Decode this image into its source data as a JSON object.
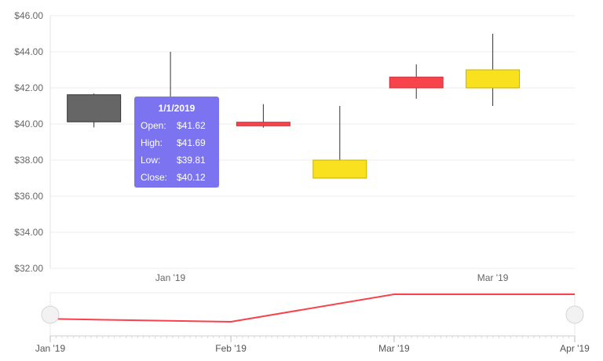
{
  "chart_data": {
    "type": "candlestick",
    "y_ticks": [
      "$46.00",
      "$44.00",
      "$42.00",
      "$40.00",
      "$38.00",
      "$36.00",
      "$34.00",
      "$32.00"
    ],
    "ylim": [
      32,
      46
    ],
    "xlim": [
      "2019-01-01",
      "2019-04-01"
    ],
    "x_tick_labels": [
      {
        "date": "2019-01-15",
        "label": "Jan '19"
      },
      {
        "date": "2019-03-15",
        "label": "Mar '19"
      }
    ],
    "candles": [
      {
        "date": "2019-01-01",
        "open": 41.62,
        "high": 41.69,
        "low": 39.81,
        "close": 40.12,
        "color": "#666666"
      },
      {
        "date": "2019-01-15",
        "open": 40.1,
        "high": 44.0,
        "low": 39.5,
        "close": 40.1,
        "color": "#666666",
        "hidden": true
      },
      {
        "date": "2019-02-01",
        "open": 40.1,
        "high": 41.1,
        "low": 39.8,
        "close": 39.9,
        "color": "#f7434c"
      },
      {
        "date": "2019-02-15",
        "open": 38.0,
        "high": 41.0,
        "low": 37.0,
        "close": 37.0,
        "color": "#f9e11f"
      },
      {
        "date": "2019-03-01",
        "open": 42.6,
        "high": 43.3,
        "low": 41.4,
        "close": 42.0,
        "color": "#f7434c"
      },
      {
        "date": "2019-03-15",
        "open": 43.0,
        "high": 45.0,
        "low": 41.0,
        "close": 42.0,
        "color": "#f9e11f"
      }
    ],
    "navigator": {
      "line_color": "#f7434c",
      "labels": [
        "Jan '19",
        "Feb '19",
        "Mar '19",
        "Apr '19"
      ],
      "series": [
        {
          "date": "2019-01-01",
          "value": 40.12
        },
        {
          "date": "2019-02-01",
          "value": 39.9
        },
        {
          "date": "2019-03-01",
          "value": 42.0
        },
        {
          "date": "2019-04-01",
          "value": 42.0
        }
      ]
    }
  },
  "tooltip": {
    "title": "1/1/2019",
    "rows": [
      {
        "k": "Open:",
        "v": "$41.62"
      },
      {
        "k": "High:",
        "v": "$41.69"
      },
      {
        "k": "Low:",
        "v": "$39.81"
      },
      {
        "k": "Close:",
        "v": "$40.12"
      }
    ]
  }
}
